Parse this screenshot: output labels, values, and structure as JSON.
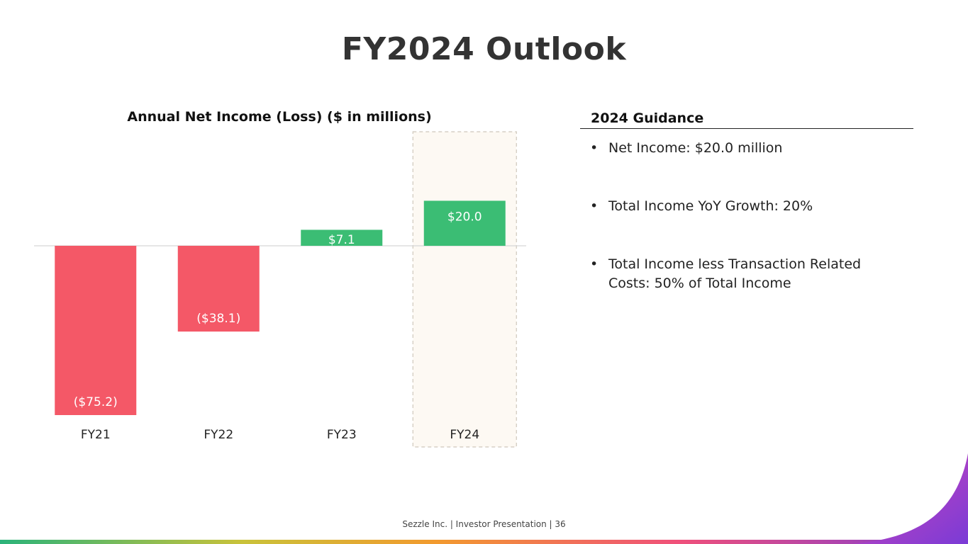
{
  "slide": {
    "title": "FY2024 Outlook",
    "footer": "Sezzle Inc. | Investor Presentation | 36"
  },
  "guidance": {
    "heading": "2024 Guidance",
    "bullets": [
      "Net Income: $20.0 million",
      "Total Income YoY Growth: 20%",
      "Total Income less Transaction Related Costs: 50% of Total Income"
    ]
  },
  "colors": {
    "negative": "#f45867",
    "positive": "#3bbd74",
    "highlight_fill": "#fdf9f3",
    "highlight_border": "#cfc8bc",
    "accent_purple": "#7a3bd6"
  },
  "chart_data": {
    "type": "bar",
    "title": "Annual Net Income (Loss) ($ in millions)",
    "xlabel": "",
    "ylabel": "",
    "categories": [
      "FY21",
      "FY22",
      "FY23",
      "FY24"
    ],
    "values": [
      -75.2,
      -38.1,
      7.1,
      20.0
    ],
    "data_labels": [
      "($75.2)",
      "($38.1)",
      "$7.1",
      "$20.0"
    ],
    "highlighted_category": "FY24",
    "grid": false,
    "legend": "none"
  }
}
